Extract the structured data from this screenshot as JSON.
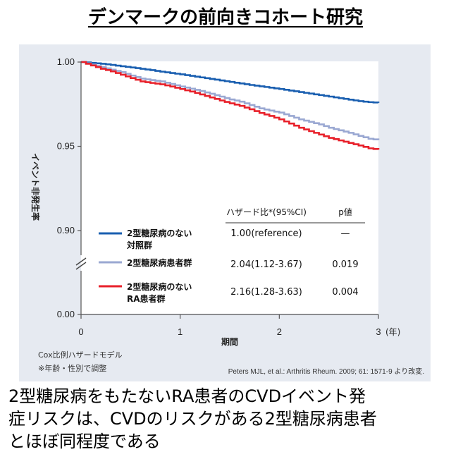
{
  "title": "デンマークの前向きコホート研究",
  "caption": {
    "line1": "2型糖尿病をもたないRA患者のCVDイベント発",
    "line2": "症リスクは、CVDのリスクがある2型糖尿病患者",
    "line3": "とほぼ同程度である"
  },
  "chart_data": {
    "type": "line",
    "ylabel": "イベント非発生率",
    "xlabel": "期間",
    "x_unit": "(年)",
    "xlim": [
      0,
      3
    ],
    "ylim": [
      0.0,
      1.0
    ],
    "x_ticks": [
      "0",
      "1",
      "2",
      "3"
    ],
    "y_ticks": [
      "0.00",
      "0.90",
      "0.95",
      "1.00"
    ],
    "axis_break": true,
    "table_header": {
      "hr": "ハザード比*(95%CI)",
      "p": "p値"
    },
    "series": [
      {
        "name": "2型糖尿病のない対照群",
        "name_lines": [
          "2型糖尿病のない",
          "対照群"
        ],
        "color": "#1a5fb0",
        "hr": "1.00(reference)",
        "p": "—",
        "x": [
          0,
          0.1,
          0.2,
          0.3,
          0.4,
          0.5,
          0.6,
          0.7,
          0.8,
          0.9,
          1.0,
          1.1,
          1.2,
          1.3,
          1.4,
          1.5,
          1.6,
          1.7,
          1.8,
          1.9,
          2.0,
          2.1,
          2.2,
          2.3,
          2.4,
          2.5,
          2.6,
          2.7,
          2.8,
          2.9,
          3.0
        ],
        "y": [
          1.0,
          0.9995,
          0.999,
          0.9983,
          0.9975,
          0.9968,
          0.996,
          0.9952,
          0.9943,
          0.9935,
          0.9927,
          0.9918,
          0.9909,
          0.99,
          0.9891,
          0.9882,
          0.9873,
          0.9864,
          0.9856,
          0.9848,
          0.984,
          0.9831,
          0.9822,
          0.9813,
          0.9804,
          0.9795,
          0.9786,
          0.9777,
          0.9768,
          0.9762,
          0.9758
        ]
      },
      {
        "name": "2型糖尿病患者群",
        "name_lines": [
          "2型糖尿病患者群"
        ],
        "color": "#9aa8d2",
        "hr": "2.04(1.12-3.67)",
        "p": "0.019",
        "x": [
          0,
          0.1,
          0.2,
          0.3,
          0.4,
          0.5,
          0.6,
          0.7,
          0.8,
          0.9,
          1.0,
          1.1,
          1.2,
          1.3,
          1.4,
          1.5,
          1.6,
          1.7,
          1.8,
          1.9,
          2.0,
          2.1,
          2.2,
          2.3,
          2.4,
          2.5,
          2.6,
          2.7,
          2.8,
          2.9,
          3.0
        ],
        "y": [
          1.0,
          0.9985,
          0.997,
          0.9955,
          0.994,
          0.992,
          0.9902,
          0.9893,
          0.9885,
          0.987,
          0.9855,
          0.9842,
          0.9828,
          0.9812,
          0.9795,
          0.9778,
          0.9765,
          0.9745,
          0.9725,
          0.9712,
          0.97,
          0.968,
          0.966,
          0.9645,
          0.963,
          0.961,
          0.9595,
          0.958,
          0.9562,
          0.9545,
          0.9537
        ]
      },
      {
        "name": "2型糖尿病のないRA患者群",
        "name_lines": [
          "2型糖尿病のない",
          "RA患者群"
        ],
        "color": "#e8202a",
        "hr": "2.16(1.28-3.63)",
        "p": "0.004",
        "x": [
          0,
          0.1,
          0.2,
          0.3,
          0.4,
          0.5,
          0.6,
          0.7,
          0.8,
          0.9,
          1.0,
          1.1,
          1.2,
          1.3,
          1.4,
          1.5,
          1.6,
          1.7,
          1.8,
          1.9,
          2.0,
          2.1,
          2.2,
          2.3,
          2.4,
          2.5,
          2.6,
          2.7,
          2.8,
          2.9,
          3.0
        ],
        "y": [
          1.0,
          0.998,
          0.996,
          0.9945,
          0.9925,
          0.9905,
          0.9885,
          0.9876,
          0.9868,
          0.9855,
          0.984,
          0.9825,
          0.9808,
          0.979,
          0.9772,
          0.9755,
          0.974,
          0.972,
          0.9698,
          0.968,
          0.966,
          0.9635,
          0.961,
          0.959,
          0.957,
          0.955,
          0.9535,
          0.952,
          0.9505,
          0.9488,
          0.948
        ]
      }
    ],
    "notes": [
      "Cox比例ハザードモデル",
      "※年齢・性別で調整"
    ],
    "source": "Peters MJL, et al.: Arthritis Rheum. 2009; 61: 1571-9 より改変."
  }
}
